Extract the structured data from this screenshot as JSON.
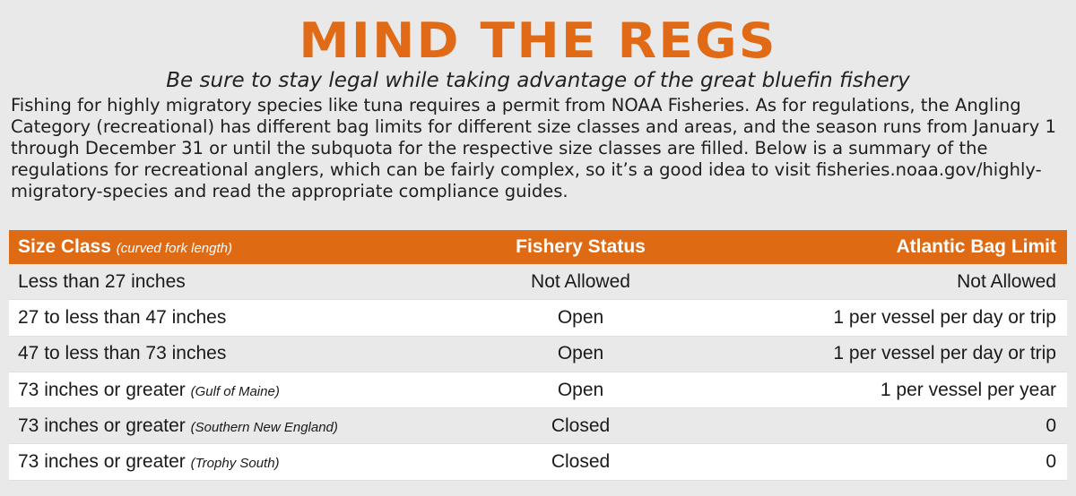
{
  "title": "MIND THE REGS",
  "subtitle": "Be sure to stay legal while taking advantage of the great bluefin fishery",
  "intro": "Fishing for highly migratory species like tuna requires a permit from NOAA Fisheries. As for regulations, the Angling Category (recreational) has different bag limits for different size classes and areas, and the season runs from January 1 through December 31 or until the subquota for the respective size classes are filled. Below is a summary of the regulations for recreational anglers, which can be fairly complex, so it’s a good idea to visit fisheries.noaa.gov/highly-migratory-species and read the appropriate compliance guides.",
  "table": {
    "header": {
      "size_class": "Size Class",
      "size_class_note": "(curved fork length)",
      "fishery_status": "Fishery Status",
      "bag_limit": "Atlantic Bag Limit"
    },
    "rows": [
      {
        "size": "Less than 27 inches",
        "note": "",
        "status": "Not Allowed",
        "limit": "Not Allowed"
      },
      {
        "size": "27 to less than 47 inches",
        "note": "",
        "status": "Open",
        "limit": "1 per vessel per day or trip"
      },
      {
        "size": "47 to less than 73 inches",
        "note": "",
        "status": "Open",
        "limit": "1 per vessel per day or trip"
      },
      {
        "size": "73 inches or greater",
        "note": "(Gulf of Maine)",
        "status": "Open",
        "limit": "1 per vessel per year"
      },
      {
        "size": "73 inches or greater",
        "note": "(Southern New England)",
        "status": "Closed",
        "limit": "0"
      },
      {
        "size": "73 inches or greater",
        "note": "(Trophy South)",
        "status": "Closed",
        "limit": "0"
      }
    ]
  },
  "colors": {
    "accent": "#df6a14",
    "background": "#e9e9e9"
  }
}
